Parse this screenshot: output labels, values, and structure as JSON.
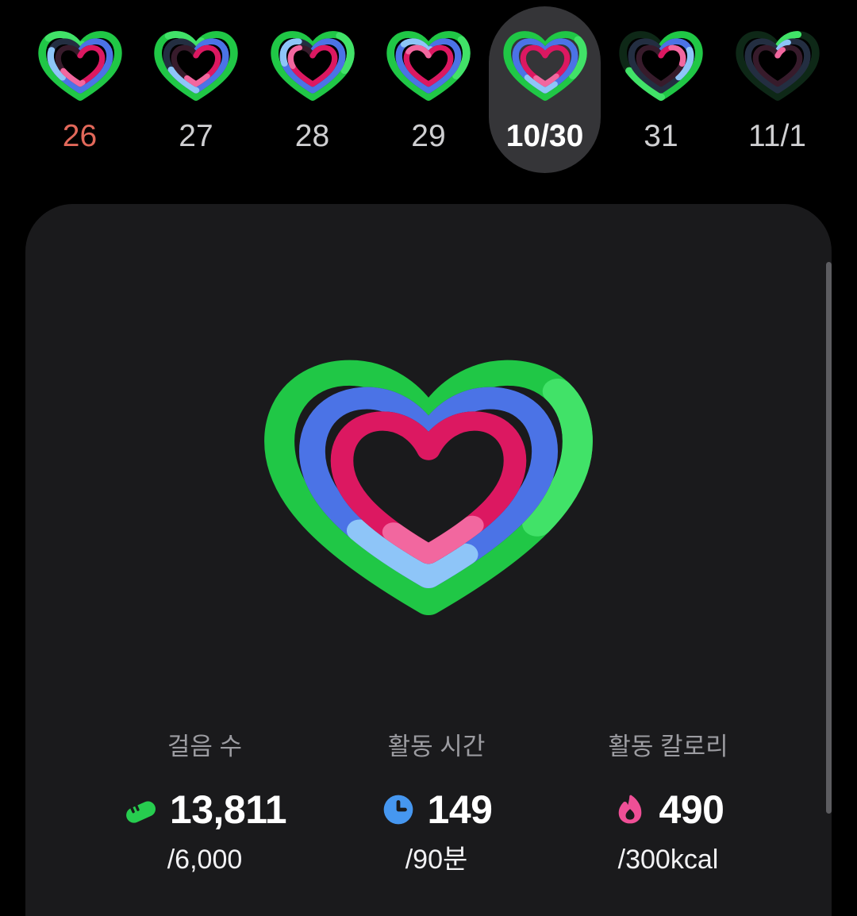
{
  "day_strip": {
    "days": [
      {
        "label": "26",
        "selected": false,
        "weekend": true,
        "rings": {
          "green": 102,
          "blue": 80,
          "pink": 66
        }
      },
      {
        "label": "27",
        "selected": false,
        "weekend": false,
        "rings": {
          "green": 104,
          "blue": 68,
          "pink": 58
        }
      },
      {
        "label": "28",
        "selected": false,
        "weekend": false,
        "rings": {
          "green": 132,
          "blue": 90,
          "pink": 88
        }
      },
      {
        "label": "29",
        "selected": false,
        "weekend": false,
        "rings": {
          "green": 135,
          "blue": 102,
          "pink": 100
        }
      },
      {
        "label": "10/30",
        "selected": true,
        "weekend": false,
        "rings": {
          "green": 135,
          "blue": 162,
          "pink": 158
        }
      },
      {
        "label": "31",
        "selected": false,
        "weekend": false,
        "rings": {
          "green": 68,
          "blue": 38,
          "pink": 28
        }
      },
      {
        "label": "11/1",
        "selected": false,
        "weekend": false,
        "rings": {
          "green": 11,
          "blue": 8,
          "pink": 6
        }
      }
    ]
  },
  "hero": {
    "rings": {
      "green": 135,
      "blue": 162,
      "pink": 158
    }
  },
  "stats": [
    {
      "label": "걸음 수",
      "icon": "shoe-icon",
      "value": "13,811",
      "goal": "/6,000"
    },
    {
      "label": "활동 시간",
      "icon": "clock-icon",
      "value": "149",
      "goal": "/90분"
    },
    {
      "label": "활동 칼로리",
      "icon": "flame-icon",
      "value": "490",
      "goal": "/300kcal"
    }
  ],
  "colors": {
    "page_bg": "#000000",
    "card_bg": "#1a1a1c",
    "selected_pill_bg": "#353538",
    "date_text": "#cfcfd1",
    "date_text_sunday": "#e2685a",
    "date_text_selected": "#ffffff",
    "stat_label_text": "#9c9ca1",
    "stat_value_text": "#ffffff",
    "stat_goal_text": "#f2f2f4",
    "scrollbar": "#5c5c60",
    "rings": {
      "green": {
        "base": "#20c746",
        "light": "#41e268",
        "track": "#0e2817"
      },
      "blue": {
        "base": "#4b73e6",
        "light": "#8ec5f8",
        "track": "#232e41"
      },
      "pink": {
        "base": "#dc1861",
        "light": "#f2679f",
        "track": "#371b2b"
      }
    },
    "icons": {
      "shoe": "#27cd4f",
      "clock": "#4697f0",
      "flame": "#ef4f96"
    }
  }
}
